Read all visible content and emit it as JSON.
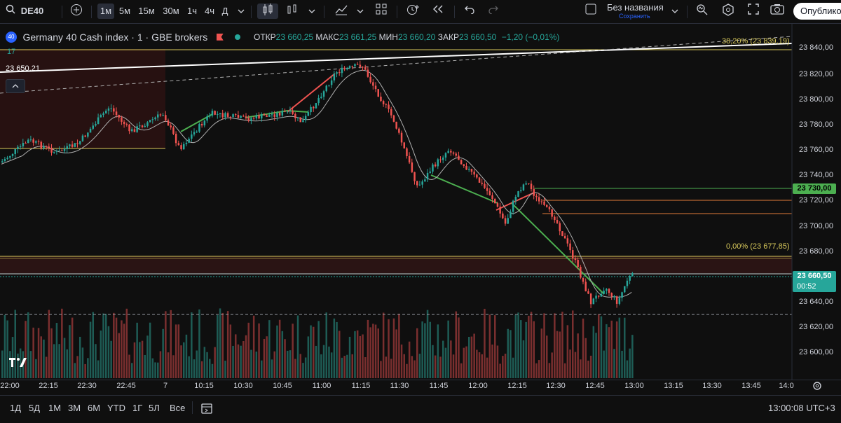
{
  "toolbar": {
    "symbol": "DE40",
    "intervals": [
      "1м",
      "5м",
      "15м",
      "30м",
      "1ч",
      "4ч",
      "Д"
    ],
    "active_interval": "1м",
    "layout_name": "Без названия",
    "layout_status": "Сохранить",
    "publish": "Опубликовать"
  },
  "legend": {
    "badge": "40",
    "title": "Germany 40 Cash index · 1 · GBE brokers",
    "open_label": "ОТКР",
    "open": "23 660,25",
    "high_label": "МАКС",
    "high": "23 661,25",
    "low_label": "МИН",
    "low": "23 660,20",
    "close_label": "ЗАКР",
    "close": "23 660,50",
    "change": "−1,20 (−0,01%)",
    "vol_indicator": "17"
  },
  "annotations": {
    "left_price": "23 650,21",
    "fib_top": "38,20% (23 839,19)",
    "fib_zero": "0,00% (23 677,85)"
  },
  "price_axis": {
    "labels": [
      "23 840,00",
      "23 820,00",
      "23 800,00",
      "23 780,00",
      "23 760,00",
      "23 740,00",
      "23 720,00",
      "23 700,00",
      "23 680,00",
      "23 640,00",
      "23 620,00",
      "23 600,00"
    ],
    "badge_green": "23 730,00",
    "badge_current": "23 660,50",
    "countdown": "00:52"
  },
  "time_axis": [
    "22:00",
    "22:15",
    "22:30",
    "22:45",
    "7",
    "10:15",
    "10:30",
    "10:45",
    "11:00",
    "11:15",
    "11:30",
    "11:45",
    "12:00",
    "12:15",
    "12:30",
    "12:45",
    "13:00",
    "13:15",
    "13:30",
    "13:45",
    "14:0"
  ],
  "bottom": {
    "ranges": [
      "1Д",
      "5Д",
      "1М",
      "3М",
      "6М",
      "YTD",
      "1Г",
      "5Л",
      "Все"
    ],
    "clock": "13:00:08 UTC+3"
  },
  "colors": {
    "up": "#26a69a",
    "down": "#ef5350",
    "line_green": "#4caf50",
    "fib_yellow": "#d8c95b"
  },
  "chart_data": {
    "type": "candlestick",
    "y_range": [
      23590,
      23852
    ],
    "series_description": "1-minute DE40 candles",
    "reference_levels": [
      23839.19,
      23730.0,
      23677.85,
      23660.5
    ]
  }
}
